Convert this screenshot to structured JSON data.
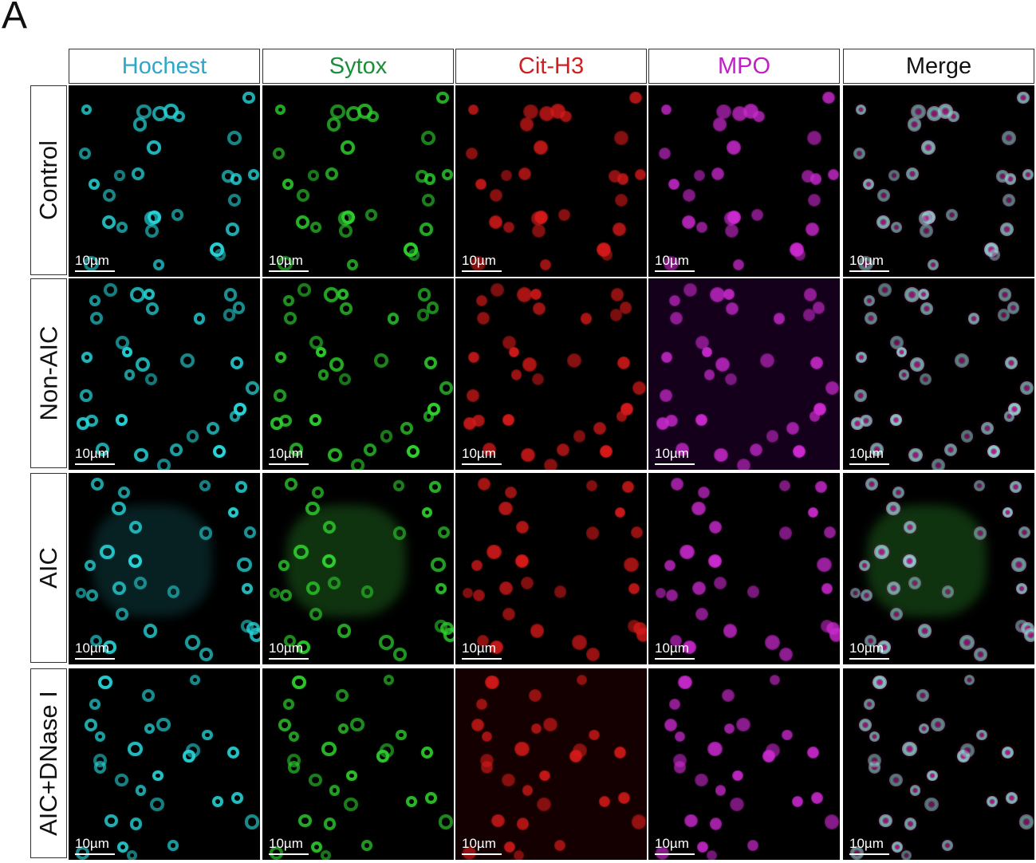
{
  "figure": {
    "panel_letter": "A",
    "columns": [
      {
        "label": "Hochest",
        "color": "#2ea7c8",
        "cell": "#28d4d8",
        "glow": "rgba(40,212,216,0.25)"
      },
      {
        "label": "Sytox",
        "color": "#1a8f3a",
        "cell": "#2fcf2f",
        "glow": "rgba(47,207,47,0.25)"
      },
      {
        "label": "Cit-H3",
        "color": "#d01f1f",
        "cell": "#d61a1a",
        "glow": "rgba(214,26,26,0.25)"
      },
      {
        "label": "MPO",
        "color": "#c21ec8",
        "cell": "#cc2ad0",
        "glow": "rgba(204,42,208,0.25)"
      },
      {
        "label": "Merge",
        "color": "#111111",
        "cell": "#7ee6c8",
        "glow": "rgba(200,60,180,0.35)"
      }
    ],
    "rows": [
      {
        "label": "Control"
      },
      {
        "label": "Non-AIC"
      },
      {
        "label": "AIC"
      },
      {
        "label": "AIC+DNase I"
      }
    ],
    "scale_bar_label": "10µm"
  }
}
